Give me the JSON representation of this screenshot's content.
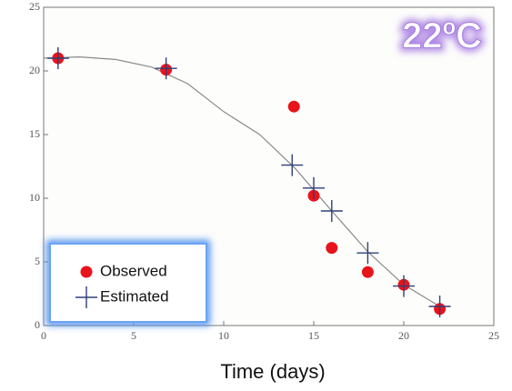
{
  "chart_data": {
    "type": "scatter",
    "xlabel": "Time (days)",
    "annotation": "22ºC",
    "xlim": [
      0,
      25
    ],
    "ylim": [
      0,
      25
    ],
    "xticks": [
      0,
      5,
      10,
      15,
      20,
      25
    ],
    "yticks": [
      0,
      5,
      10,
      15,
      20,
      25
    ],
    "legend": "lower left",
    "series": [
      {
        "name": "Observed",
        "color": "#e8141c",
        "marker": "circle",
        "x": [
          0.8,
          6.8,
          13.9,
          15,
          16,
          18,
          20,
          22
        ],
        "values": [
          21,
          20.1,
          17.2,
          10.2,
          6.1,
          4.2,
          3.2,
          1.3
        ]
      },
      {
        "name": "Estimated",
        "color": "#2f3f7a",
        "marker": "cross",
        "x": [
          0.8,
          6.8,
          13.8,
          15,
          16,
          18,
          20,
          22
        ],
        "values": [
          21,
          20.2,
          12.6,
          10.8,
          9,
          5.7,
          3.1,
          1.5
        ]
      }
    ],
    "curve": {
      "color": "#8a8a8a",
      "x": [
        0,
        2,
        4,
        6,
        8,
        10,
        12,
        14,
        16,
        18,
        20,
        22
      ],
      "values": [
        21,
        21.1,
        20.9,
        20.3,
        19,
        16.8,
        15,
        12.3,
        9,
        5.8,
        3.2,
        1.5
      ]
    }
  }
}
